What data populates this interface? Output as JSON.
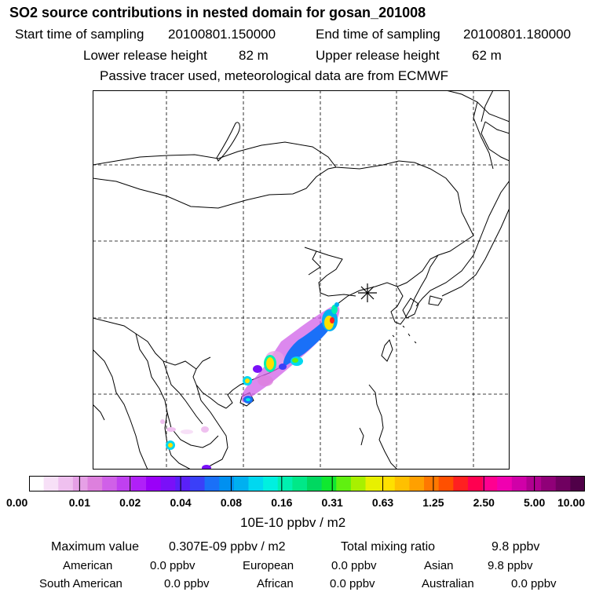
{
  "header": {
    "title": "SO2 source contributions in nested domain for gosan_201008",
    "start_label": "Start time of sampling",
    "start_value": "20100801.150000",
    "end_label": "End time of sampling",
    "end_value": "20100801.180000",
    "lower_label": "Lower release height",
    "lower_value": "82 m",
    "upper_label": "Upper release height",
    "upper_value": "62 m",
    "tracer_note": "Passive tracer used, meteorological data are from ECMWF"
  },
  "map": {
    "release_marker": "gosan-release-star",
    "colors": [
      "#ffffff",
      "#f7e0f7",
      "#efc0ef",
      "#e6a0e6",
      "#dd80dd",
      "#d060e8",
      "#c040f0",
      "#b020f8",
      "#9a00f8",
      "#7a10f8",
      "#5a20f8",
      "#3a40f8",
      "#1a70f8",
      "#0090f0",
      "#00b0f0",
      "#00d8f0",
      "#00f0e0",
      "#00f0b0",
      "#00e888",
      "#00d860",
      "#10e830",
      "#60f010",
      "#a8f000",
      "#e8f000",
      "#ffe000",
      "#ffc000",
      "#ffa000",
      "#ff7800",
      "#ff5000",
      "#ff2020",
      "#ff0050",
      "#ff0090",
      "#f000b0",
      "#d000a8",
      "#b00090",
      "#900078",
      "#700060",
      "#500048"
    ]
  },
  "colorbar": {
    "ticks": [
      "0.00",
      "0.01",
      "0.02",
      "0.04",
      "0.08",
      "0.16",
      "0.31",
      "0.63",
      "1.25",
      "2.50",
      "5.00",
      "10.00"
    ],
    "unit_label": "10E-10 ppbv / m2"
  },
  "summary": {
    "max_label": "Maximum value",
    "max_value": "0.307E-09 ppbv / m2",
    "total_label": "Total mixing ratio",
    "total_value": "9.8 ppbv",
    "american_label": "American",
    "american_value": "0.0 ppbv",
    "european_label": "European",
    "european_value": "0.0 ppbv",
    "asian_label": "Asian",
    "asian_value": "9.8 ppbv",
    "south_american_label": "South American",
    "south_american_value": "0.0 ppbv",
    "african_label": "African",
    "african_value": "0.0 ppbv",
    "australian_label": "Australian",
    "australian_value": "0.0 ppbv"
  }
}
